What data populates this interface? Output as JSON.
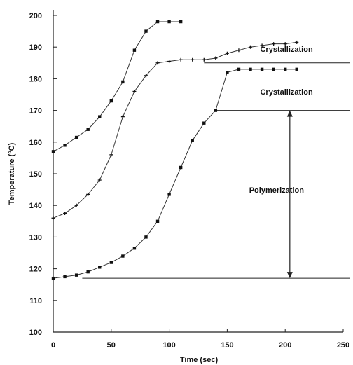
{
  "chart_data": {
    "type": "line",
    "title": "",
    "xlabel": "Time (sec)",
    "ylabel": "Temperature (°C)",
    "xlim": [
      0,
      250
    ],
    "ylim": [
      100,
      200
    ],
    "x_ticks": [
      0,
      50,
      100,
      150,
      200,
      250
    ],
    "y_ticks": [
      100,
      110,
      120,
      130,
      140,
      150,
      160,
      170,
      180,
      190,
      200
    ],
    "grid": false,
    "legend": "none",
    "series": [
      {
        "marker": "square",
        "x": [
          0,
          10,
          20,
          30,
          40,
          50,
          60,
          70,
          80,
          90,
          100,
          110
        ],
        "y": [
          157,
          159,
          161.5,
          164,
          168,
          173,
          179,
          189,
          195,
          198,
          198,
          198
        ]
      },
      {
        "marker": "plus",
        "x": [
          0,
          10,
          20,
          30,
          40,
          50,
          60,
          70,
          80,
          90,
          100,
          110,
          120,
          130,
          140,
          150,
          160,
          170,
          180,
          190,
          200,
          210
        ],
        "y": [
          136,
          137.5,
          140,
          143.5,
          148,
          156,
          168,
          176,
          181,
          185,
          185.5,
          186,
          186,
          186,
          186.5,
          188,
          189,
          190,
          190.5,
          191,
          191,
          191.5
        ]
      },
      {
        "marker": "square",
        "x": [
          0,
          10,
          20,
          30,
          40,
          50,
          60,
          70,
          80,
          90,
          100,
          110,
          120,
          130,
          140,
          150,
          160,
          170,
          180,
          190,
          200,
          210
        ],
        "y": [
          117,
          117.5,
          118,
          119,
          120.5,
          122,
          124,
          126.5,
          130,
          135,
          143.5,
          152,
          160.5,
          166,
          170,
          182,
          183,
          183,
          183,
          183,
          183,
          183
        ]
      }
    ],
    "reference_lines": [
      {
        "x": [
          130,
          260
        ],
        "y": [
          185,
          185
        ]
      },
      {
        "x": [
          140,
          260
        ],
        "y": [
          170,
          170
        ]
      },
      {
        "x": [
          25,
          260
        ],
        "y": [
          117,
          117
        ]
      }
    ],
    "arrow": {
      "x": 204,
      "y": [
        170,
        117
      ]
    },
    "annotations": [
      {
        "text": "Crystallization",
        "x": 180,
        "y": 188.5
      },
      {
        "text": "Crystallization",
        "x": 180,
        "y": 175
      },
      {
        "text": "Polymerization",
        "x": 201,
        "y": 144
      }
    ]
  }
}
